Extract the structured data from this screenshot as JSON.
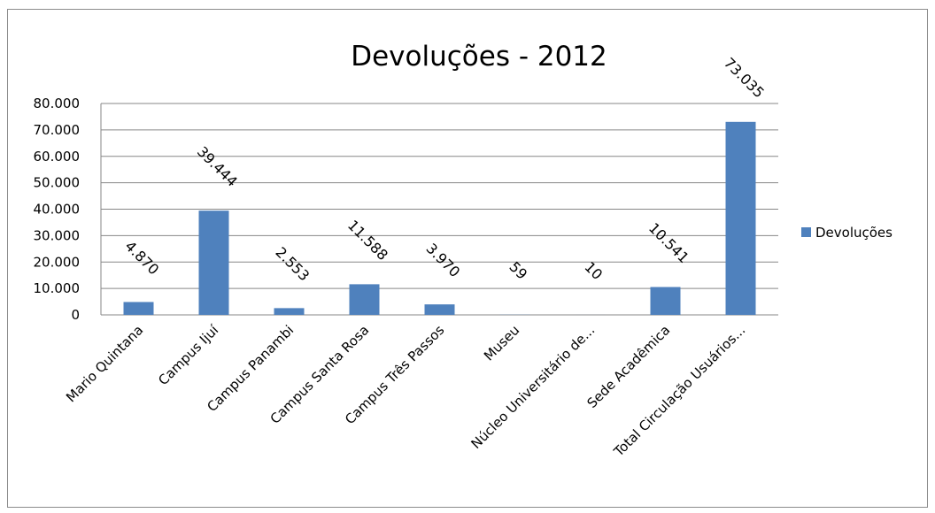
{
  "chart_data": {
    "type": "bar",
    "title": "Devoluções - 2012",
    "xlabel": "",
    "ylabel": "",
    "categories": [
      "Mario Quintana",
      "Campus Ijuí",
      "Campus Panambi",
      "Campus Santa Rosa",
      "Campus Três Passos",
      "Museu",
      "Núcleo Universitário de...",
      "Sede Acadêmica",
      "Total Circulação Usuários..."
    ],
    "series": [
      {
        "name": "Devoluções",
        "color": "#4f81bd",
        "values": [
          4870,
          39444,
          2553,
          11588,
          3970,
          59,
          10,
          10541,
          73035
        ],
        "value_labels": [
          "4.870",
          "39.444",
          "2.553",
          "11.588",
          "3.970",
          "59",
          "10",
          "10.541",
          "73.035"
        ]
      }
    ],
    "ylim": [
      0,
      80000
    ],
    "y_ticks": [
      0,
      10000,
      20000,
      30000,
      40000,
      50000,
      60000,
      70000,
      80000
    ],
    "y_tick_labels": [
      "0",
      "10.000",
      "20.000",
      "30.000",
      "40.000",
      "50.000",
      "60.000",
      "70.000",
      "80.000"
    ],
    "grid": true,
    "legend_position": "right"
  }
}
